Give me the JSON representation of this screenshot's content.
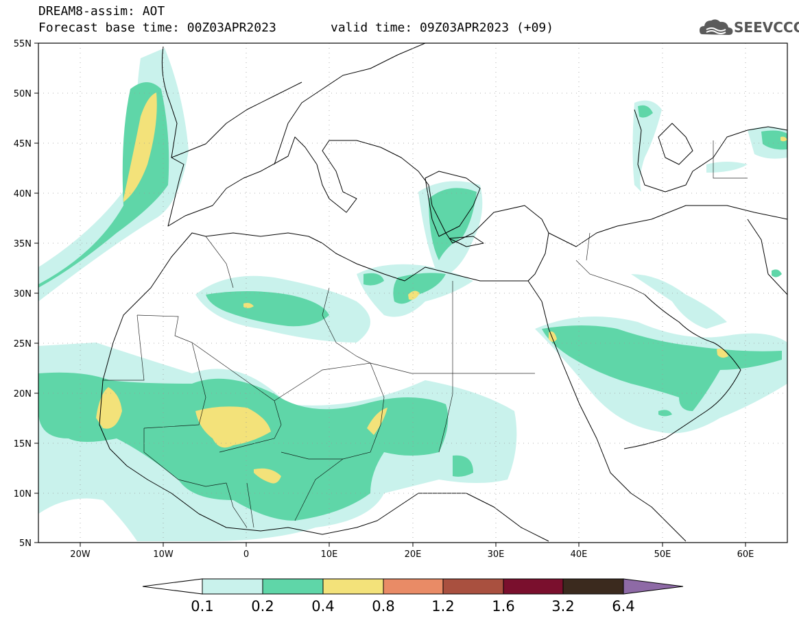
{
  "header": {
    "line1": "DREAM8-assim: AOT",
    "line2": "Forecast base time: 00Z03APR2023",
    "line2_valid": "valid time: 09Z03APR2023 (+09)"
  },
  "logo": {
    "text": "SEEVCCC",
    "icon": "cloud-icon"
  },
  "map": {
    "lat_labels": [
      "55N",
      "50N",
      "45N",
      "40N",
      "35N",
      "30N",
      "25N",
      "20N",
      "15N",
      "10N",
      "5N"
    ],
    "lon_labels": [
      "20W",
      "10W",
      "0",
      "10E",
      "20E",
      "30E",
      "40E",
      "50E",
      "60E"
    ]
  },
  "colorbar": {
    "labels": [
      "0.1",
      "0.2",
      "0.4",
      "0.8",
      "1.2",
      "1.6",
      "3.2",
      "6.4"
    ],
    "colors": [
      "#c9f2ec",
      "#5fd6a8",
      "#f3e27a",
      "#e98b66",
      "#a9503f",
      "#7a0f2d",
      "#3b2a1e",
      "#8e6aa6"
    ]
  }
}
